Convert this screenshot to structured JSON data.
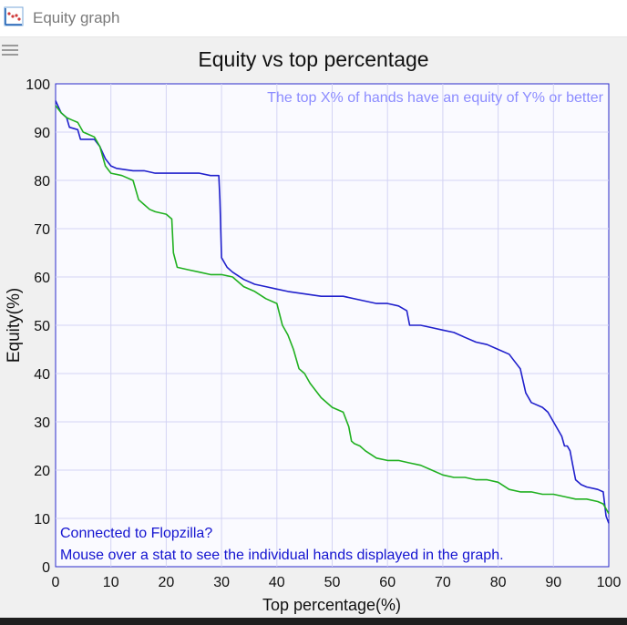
{
  "window": {
    "title": "Equity graph",
    "icon": "chart-app-icon",
    "menu_icon": "hamburger-menu-icon"
  },
  "chart_data": {
    "type": "line",
    "title": "Equity vs top percentage",
    "subtitle": "The top X% of hands have an equity of Y% or better",
    "xlabel": "Top percentage(%)",
    "ylabel": "Equity(%)",
    "xlim": [
      0,
      100
    ],
    "ylim": [
      0,
      100
    ],
    "xticks": [
      0,
      10,
      20,
      30,
      40,
      50,
      60,
      70,
      80,
      90,
      100
    ],
    "yticks": [
      0,
      10,
      20,
      30,
      40,
      50,
      60,
      70,
      80,
      90,
      100
    ],
    "grid": true,
    "series": [
      {
        "color": "#2020cc",
        "x": [
          0,
          1,
          2,
          2.5,
          4,
          4.5,
          6,
          7,
          8,
          9,
          10,
          11,
          14,
          16,
          18,
          20,
          24,
          26,
          28,
          29.5,
          29.7,
          30,
          31,
          32,
          34,
          36,
          38,
          40,
          42,
          45,
          48,
          52,
          56,
          58,
          60,
          62,
          63.5,
          64,
          66,
          68,
          70,
          72,
          74,
          76,
          78,
          80,
          82,
          83,
          84,
          85,
          86,
          88,
          89,
          90,
          91,
          91.5,
          92,
          92.5,
          93,
          93.5,
          94,
          95,
          96,
          98,
          99,
          99.5,
          100
        ],
        "y": [
          96.5,
          94,
          93,
          91,
          90.5,
          88.5,
          88.5,
          88.5,
          87,
          84.5,
          83,
          82.5,
          82,
          82,
          81.5,
          81.5,
          81.5,
          81.5,
          81,
          81,
          76,
          64,
          62,
          61,
          59.5,
          58.5,
          58,
          57.5,
          57,
          56.5,
          56,
          56,
          55,
          54.5,
          54.5,
          54,
          53,
          50,
          50,
          49.5,
          49,
          48.5,
          47.5,
          46.5,
          46,
          45,
          44,
          42.5,
          41,
          36,
          34,
          33,
          32,
          30,
          28,
          27,
          25,
          25,
          24,
          21,
          18,
          17,
          16.5,
          16,
          15.5,
          10.5,
          9
        ]
      },
      {
        "color": "#20b020",
        "x": [
          0,
          1,
          2,
          3,
          4,
          5,
          6,
          7,
          8,
          9,
          10,
          12,
          14,
          15,
          16,
          17,
          18,
          20,
          21,
          21.3,
          22,
          24,
          26,
          28,
          30,
          32,
          34,
          36,
          38,
          40,
          41,
          42,
          43,
          44,
          45,
          46,
          48,
          50,
          52,
          53,
          53.5,
          54,
          55,
          56,
          58,
          60,
          62,
          64,
          66,
          68,
          70,
          72,
          74,
          76,
          78,
          80,
          82,
          84,
          86,
          88,
          90,
          92,
          94,
          96,
          98,
          99,
          100
        ],
        "y": [
          95.5,
          94,
          93,
          92.5,
          92,
          90,
          89.5,
          89,
          87,
          83,
          81.5,
          81,
          80,
          76,
          75,
          74,
          73.5,
          73,
          72,
          65,
          62,
          61.5,
          61,
          60.5,
          60.5,
          60,
          58,
          57,
          55.5,
          54.5,
          50,
          48,
          45,
          41,
          40,
          38,
          35,
          33,
          32,
          29,
          26,
          25.5,
          25,
          24,
          22.5,
          22,
          22,
          21.5,
          21,
          20,
          19,
          18.5,
          18.5,
          18,
          18,
          17.5,
          16,
          15.5,
          15.5,
          15,
          15,
          14.5,
          14,
          14,
          13.5,
          13,
          11
        ]
      }
    ],
    "annotations": [
      "Connected to Flopzilla?",
      "Mouse over a stat to see the individual hands displayed in the graph."
    ]
  }
}
